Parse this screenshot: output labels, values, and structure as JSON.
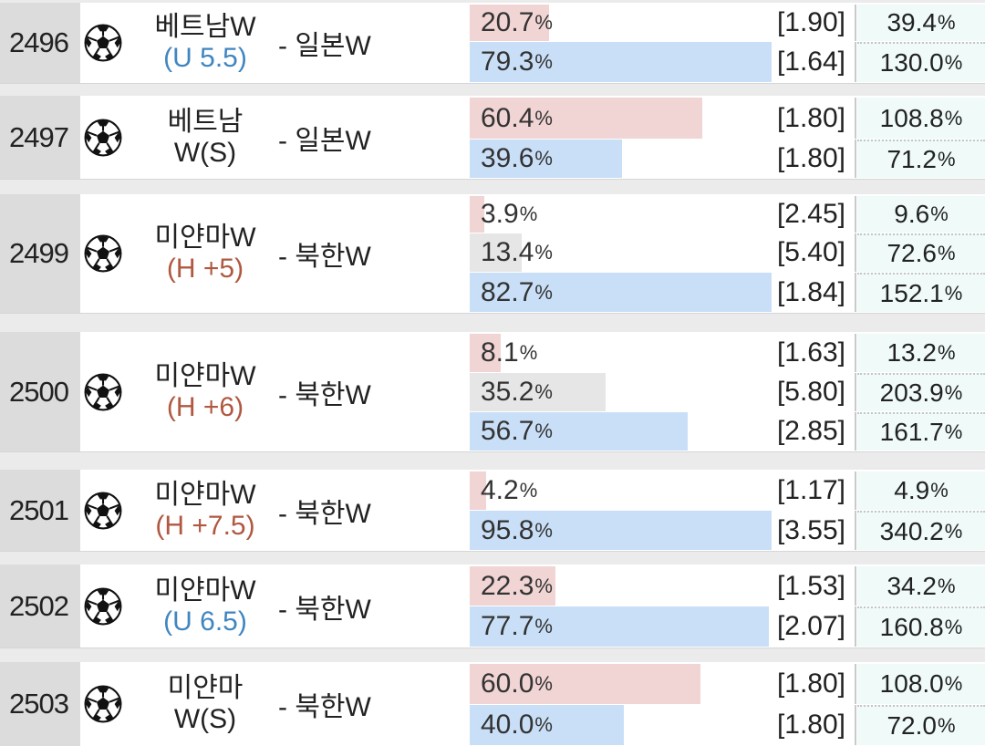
{
  "colors": {
    "home_bar": "#f1d4d4",
    "draw_bar": "#e6e6e6",
    "away_bar": "#c9dff7",
    "return_bg": "#effaf9"
  },
  "sport_icon": "soccer-ball-icon",
  "games": [
    {
      "number": "2496",
      "home": "베트남W",
      "condition": "(U 5.5)",
      "cond_type": "under",
      "away": "- 일본W",
      "rows": [
        {
          "pct": "20.7",
          "sign": "%",
          "value": 20.7,
          "kind": "home",
          "odds": "[1.90]",
          "ret": "39.4",
          "ret_sign": "%"
        },
        {
          "pct": "79.3",
          "sign": "%",
          "value": 79.3,
          "kind": "away",
          "odds": "[1.64]",
          "ret": "130.0",
          "ret_sign": "%"
        }
      ]
    },
    {
      "number": "2497",
      "home": "베트남",
      "condition": "W(S)",
      "cond_type": "plain",
      "away": "- 일본W",
      "rows": [
        {
          "pct": "60.4",
          "sign": "%",
          "value": 60.4,
          "kind": "home",
          "odds": "[1.80]",
          "ret": "108.8",
          "ret_sign": "%"
        },
        {
          "pct": "39.6",
          "sign": "%",
          "value": 39.6,
          "kind": "away",
          "odds": "[1.80]",
          "ret": "71.2",
          "ret_sign": "%"
        }
      ]
    },
    {
      "number": "2499",
      "home": "미얀마W",
      "condition": "(H +5)",
      "cond_type": "handi",
      "away": "- 북한W",
      "rows": [
        {
          "pct": "3.9",
          "sign": "%",
          "value": 3.9,
          "kind": "home",
          "odds": "[2.45]",
          "ret": "9.6",
          "ret_sign": "%"
        },
        {
          "pct": "13.4",
          "sign": "%",
          "value": 13.4,
          "kind": "draw",
          "odds": "[5.40]",
          "ret": "72.6",
          "ret_sign": "%"
        },
        {
          "pct": "82.7",
          "sign": "%",
          "value": 82.7,
          "kind": "away",
          "odds": "[1.84]",
          "ret": "152.1",
          "ret_sign": "%"
        }
      ]
    },
    {
      "number": "2500",
      "home": "미얀마W",
      "condition": "(H +6)",
      "cond_type": "handi",
      "away": "- 북한W",
      "rows": [
        {
          "pct": "8.1",
          "sign": "%",
          "value": 8.1,
          "kind": "home",
          "odds": "[1.63]",
          "ret": "13.2",
          "ret_sign": "%"
        },
        {
          "pct": "35.2",
          "sign": "%",
          "value": 35.2,
          "kind": "draw",
          "odds": "[5.80]",
          "ret": "203.9",
          "ret_sign": "%"
        },
        {
          "pct": "56.7",
          "sign": "%",
          "value": 56.7,
          "kind": "away",
          "odds": "[2.85]",
          "ret": "161.7",
          "ret_sign": "%"
        }
      ]
    },
    {
      "number": "2501",
      "home": "미얀마W",
      "condition": "(H +7.5)",
      "cond_type": "handi",
      "away": "- 북한W",
      "rows": [
        {
          "pct": "4.2",
          "sign": "%",
          "value": 4.2,
          "kind": "home",
          "odds": "[1.17]",
          "ret": "4.9",
          "ret_sign": "%"
        },
        {
          "pct": "95.8",
          "sign": "%",
          "value": 95.8,
          "kind": "away",
          "odds": "[3.55]",
          "ret": "340.2",
          "ret_sign": "%"
        }
      ]
    },
    {
      "number": "2502",
      "home": "미얀마W",
      "condition": "(U 6.5)",
      "cond_type": "under",
      "away": "- 북한W",
      "rows": [
        {
          "pct": "22.3",
          "sign": "%",
          "value": 22.3,
          "kind": "home",
          "odds": "[1.53]",
          "ret": "34.2",
          "ret_sign": "%"
        },
        {
          "pct": "77.7",
          "sign": "%",
          "value": 77.7,
          "kind": "away",
          "odds": "[2.07]",
          "ret": "160.8",
          "ret_sign": "%"
        }
      ]
    },
    {
      "number": "2503",
      "home": "미얀마",
      "condition": "W(S)",
      "cond_type": "plain",
      "away": "- 북한W",
      "rows": [
        {
          "pct": "60.0",
          "sign": "%",
          "value": 60.0,
          "kind": "home",
          "odds": "[1.80]",
          "ret": "108.0",
          "ret_sign": "%"
        },
        {
          "pct": "40.0",
          "sign": "%",
          "value": 40.0,
          "kind": "away",
          "odds": "[1.80]",
          "ret": "72.0",
          "ret_sign": "%"
        }
      ]
    }
  ]
}
